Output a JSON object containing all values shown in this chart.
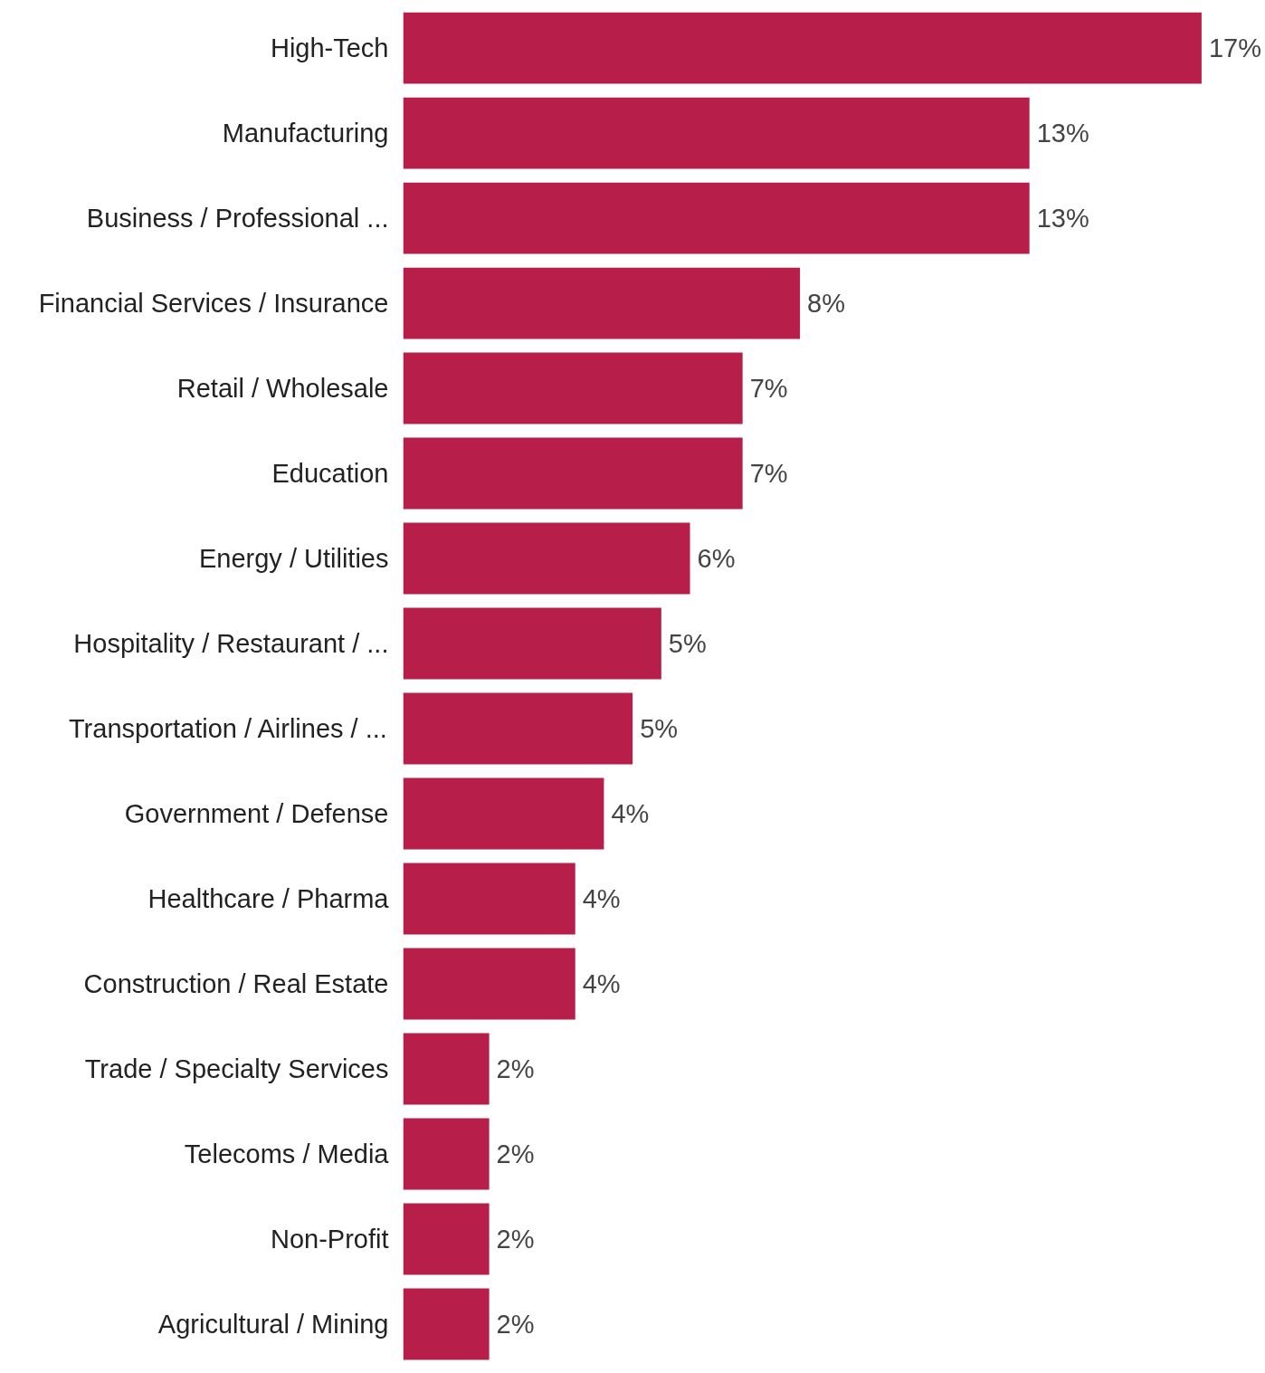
{
  "chart_data": {
    "type": "bar",
    "orientation": "horizontal",
    "tick_labels": "y",
    "grid": false,
    "categories": [
      "High-Tech",
      "Manufacturing",
      "Business / Professional ...",
      "Financial Services / Insurance",
      "Retail / Wholesale",
      "Education",
      "Energy / Utilities",
      "Hospitality / Restaurant / ...",
      "Transportation / Airlines / ...",
      "Government / Defense",
      "Healthcare / Pharma",
      "Construction / Real Estate",
      "Trade / Specialty Services",
      "Telecoms / Media",
      "Non-Profit",
      "Agricultural / Mining"
    ],
    "values": [
      16.7,
      13.1,
      13.1,
      8.3,
      7.1,
      7.1,
      6.0,
      5.4,
      4.8,
      4.2,
      3.6,
      3.6,
      1.8,
      1.8,
      1.8,
      1.8
    ],
    "value_labels": [
      "17%",
      "13%",
      "13%",
      "8%",
      "7%",
      "7%",
      "6%",
      "5%",
      "5%",
      "4%",
      "4%",
      "4%",
      "2%",
      "2%",
      "2%",
      "2%"
    ],
    "color": "#b71e4a"
  }
}
